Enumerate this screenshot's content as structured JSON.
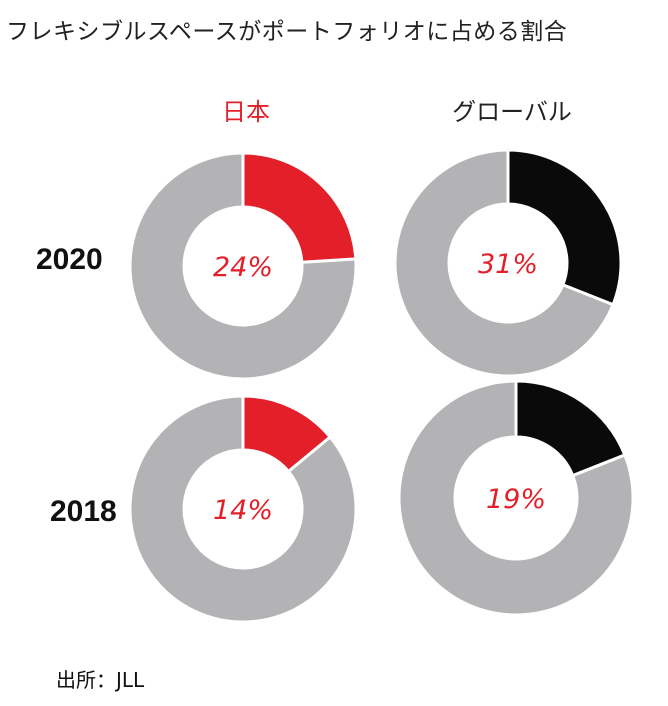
{
  "title": "フレキシブルスペースがポートフォリオに占める割合",
  "source": "出所：JLL",
  "colors": {
    "japan": "#e3202a",
    "global": "#0a0a0a",
    "remainder": "#b3b3b5",
    "pct_text": "#e3202a",
    "japan_label": "#e3202a",
    "global_label": "#222222"
  },
  "chart_data": {
    "type": "pie",
    "variant": "donut-grid",
    "columns": [
      "日本",
      "グローバル"
    ],
    "rows": [
      "2020",
      "2018"
    ],
    "cells": [
      {
        "row": "2020",
        "column": "日本",
        "value": 24,
        "label": "24%"
      },
      {
        "row": "2020",
        "column": "グローバル",
        "value": 31,
        "label": "31%"
      },
      {
        "row": "2018",
        "column": "日本",
        "value": 14,
        "label": "14%"
      },
      {
        "row": "2018",
        "column": "グローバル",
        "value": 19,
        "label": "19%"
      }
    ]
  }
}
